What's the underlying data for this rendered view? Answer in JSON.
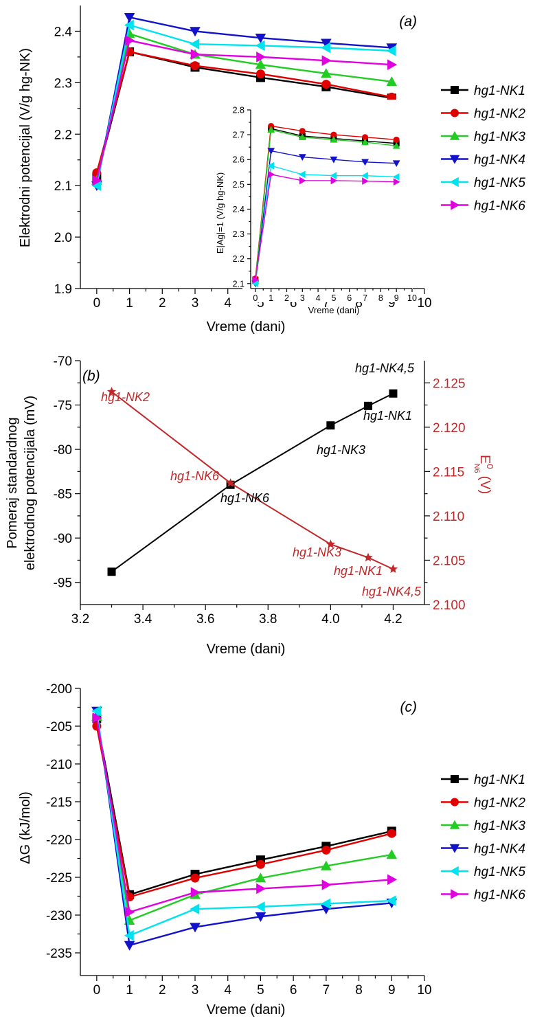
{
  "colors": {
    "hg1-NK1": "#000000",
    "hg1-NK2": "#e00000",
    "hg1-NK3": "#22cc22",
    "hg1-NK4": "#1212c8",
    "hg1-NK5": "#00e2ee",
    "hg1-NK6": "#e000e0",
    "right_axis": "#c0282a"
  },
  "chart_data": [
    {
      "id": "a",
      "type": "line",
      "panel_label": "(a)",
      "xlabel": "Vreme (dani)",
      "ylabel": "Elektrodni potencijal (V/g hg-NK)",
      "xlim": [
        -0.5,
        10
      ],
      "ylim": [
        1.9,
        2.45
      ],
      "xticks": [
        0,
        1,
        2,
        3,
        4,
        5,
        6,
        7,
        8,
        9,
        10
      ],
      "yticks": [
        1.9,
        2.0,
        2.1,
        2.2,
        2.3,
        2.4
      ],
      "ytick_labels": [
        "1.9",
        "2.0",
        "2.1",
        "2.2",
        "2.3",
        "2.4"
      ],
      "x": [
        0,
        1,
        3,
        5,
        7,
        9
      ],
      "legend_position": "right, outside",
      "series": [
        {
          "name": "hg1-NK1",
          "marker": "square",
          "values": [
            2.115,
            2.36,
            2.33,
            2.31,
            2.292,
            2.27
          ]
        },
        {
          "name": "hg1-NK2",
          "marker": "circle",
          "values": [
            2.125,
            2.36,
            2.333,
            2.317,
            2.297,
            2.272
          ]
        },
        {
          "name": "hg1-NK3",
          "marker": "triangle-up",
          "values": [
            2.11,
            2.395,
            2.355,
            2.335,
            2.318,
            2.302
          ]
        },
        {
          "name": "hg1-NK4",
          "marker": "triangle-down",
          "values": [
            2.1,
            2.427,
            2.4,
            2.387,
            2.377,
            2.368
          ]
        },
        {
          "name": "hg1-NK5",
          "marker": "triangle-left",
          "values": [
            2.1,
            2.412,
            2.375,
            2.372,
            2.368,
            2.362
          ]
        },
        {
          "name": "hg1-NK6",
          "marker": "triangle-right",
          "values": [
            2.11,
            2.382,
            2.355,
            2.35,
            2.343,
            2.335
          ]
        }
      ],
      "inset": {
        "xlabel": "Vreme (dani)",
        "ylabel": "E|Ag|=1 (V/g hg-NK)",
        "xlim": [
          -0.3,
          10
        ],
        "ylim": [
          2.08,
          2.8
        ],
        "xticks": [
          0,
          1,
          2,
          3,
          4,
          5,
          6,
          7,
          8,
          9,
          10
        ],
        "yticks": [
          2.1,
          2.2,
          2.3,
          2.4,
          2.5,
          2.6,
          2.7,
          2.8
        ],
        "ytick_labels": [
          "2.1",
          "2.2",
          "2.3",
          "2.4",
          "2.5",
          "2.6",
          "2.7",
          "2.8"
        ],
        "x": [
          0,
          1,
          3,
          5,
          7,
          9
        ],
        "series": [
          {
            "name": "hg1-NK1",
            "marker": "square",
            "values": [
              2.115,
              2.725,
              2.695,
              2.685,
              2.675,
              2.665
            ]
          },
          {
            "name": "hg1-NK2",
            "marker": "circle",
            "values": [
              2.12,
              2.735,
              2.715,
              2.7,
              2.69,
              2.68
            ]
          },
          {
            "name": "hg1-NK3",
            "marker": "triangle-up",
            "values": [
              2.11,
              2.72,
              2.69,
              2.68,
              2.67,
              2.655
            ]
          },
          {
            "name": "hg1-NK4",
            "marker": "triangle-down",
            "values": [
              2.1,
              2.635,
              2.61,
              2.6,
              2.59,
              2.585
            ]
          },
          {
            "name": "hg1-NK5",
            "marker": "triangle-left",
            "values": [
              2.1,
              2.575,
              2.54,
              2.535,
              2.535,
              2.53
            ]
          },
          {
            "name": "hg1-NK6",
            "marker": "triangle-right",
            "values": [
              2.115,
              2.54,
              2.515,
              2.515,
              2.513,
              2.51
            ]
          }
        ]
      }
    },
    {
      "id": "b",
      "type": "line",
      "panel_label": "(b)",
      "xlabel": "Vreme (dani)",
      "ylabel_line1": "Pomeraj standardnog",
      "ylabel_line2": "elektrodnog potencijala (mV)",
      "ylabel_right_main": "E",
      "ylabel_right_sup": "0",
      "ylabel_right_sub": "N6",
      "ylabel_right_unit": "(V)",
      "xlim": [
        3.2,
        4.3
      ],
      "ylim_left": [
        -97.5,
        -70
      ],
      "ylim_right": [
        2.1,
        2.1275
      ],
      "xticks": [
        3.2,
        3.4,
        3.6,
        3.8,
        4.0,
        4.2
      ],
      "xtick_labels": [
        "3.2",
        "3.4",
        "3.6",
        "3.8",
        "4.0",
        "4.2"
      ],
      "yticks_left": [
        -95,
        -90,
        -85,
        -80,
        -75,
        -70
      ],
      "yticks_right": [
        2.1,
        2.105,
        2.11,
        2.115,
        2.12,
        2.125
      ],
      "ytick_right_labels": [
        "2.100",
        "2.105",
        "2.110",
        "2.115",
        "2.120",
        "2.125"
      ],
      "series": [
        {
          "axis": "left",
          "marker": "square",
          "color": "#000000",
          "x": [
            3.3,
            3.68,
            4.0,
            4.12,
            4.2
          ],
          "values": [
            -93.8,
            -84.0,
            -77.3,
            -75.1,
            -73.7
          ]
        },
        {
          "axis": "right",
          "marker": "star",
          "color": "#c0282a",
          "x": [
            3.3,
            3.68,
            4.0,
            4.12,
            4.2
          ],
          "values": [
            2.124,
            2.1137,
            2.1068,
            2.1053,
            2.104
          ]
        }
      ],
      "annotations_black": [
        "hg1-NK4,5",
        "hg1-NK1",
        "hg1-NK3",
        "hg1-NK6"
      ],
      "annotations_red": [
        "hg1-NK2",
        "hg1-NK6",
        "hg1-NK3",
        "hg1-NK1",
        "hg1-NK4,5"
      ]
    },
    {
      "id": "c",
      "type": "line",
      "panel_label": "(c)",
      "xlabel": "Vreme (dani)",
      "ylabel": "ΔG (kJ/mol)",
      "xlim": [
        -0.5,
        10
      ],
      "ylim": [
        -238,
        -200
      ],
      "xticks": [
        0,
        1,
        2,
        3,
        4,
        5,
        6,
        7,
        8,
        9,
        10
      ],
      "yticks": [
        -235,
        -230,
        -225,
        -220,
        -215,
        -210,
        -205,
        -200
      ],
      "x": [
        0,
        1,
        3,
        5,
        7,
        9
      ],
      "legend_position": "right, outside",
      "series": [
        {
          "name": "hg1-NK1",
          "marker": "square",
          "values": [
            -204.0,
            -227.3,
            -224.6,
            -222.7,
            -220.9,
            -218.9
          ]
        },
        {
          "name": "hg1-NK2",
          "marker": "circle",
          "values": [
            -205.0,
            -227.6,
            -225.1,
            -223.3,
            -221.4,
            -219.2
          ]
        },
        {
          "name": "hg1-NK3",
          "marker": "triangle-up",
          "values": [
            -203.7,
            -230.7,
            -227.3,
            -225.1,
            -223.5,
            -222.0
          ]
        },
        {
          "name": "hg1-NK4",
          "marker": "triangle-down",
          "values": [
            -203.0,
            -234.0,
            -231.6,
            -230.2,
            -229.2,
            -228.4
          ]
        },
        {
          "name": "hg1-NK5",
          "marker": "triangle-left",
          "values": [
            -203.0,
            -232.7,
            -229.2,
            -228.9,
            -228.5,
            -228.1
          ]
        },
        {
          "name": "hg1-NK6",
          "marker": "triangle-right",
          "values": [
            -203.9,
            -229.6,
            -227.0,
            -226.5,
            -226.0,
            -225.3
          ]
        }
      ]
    }
  ]
}
